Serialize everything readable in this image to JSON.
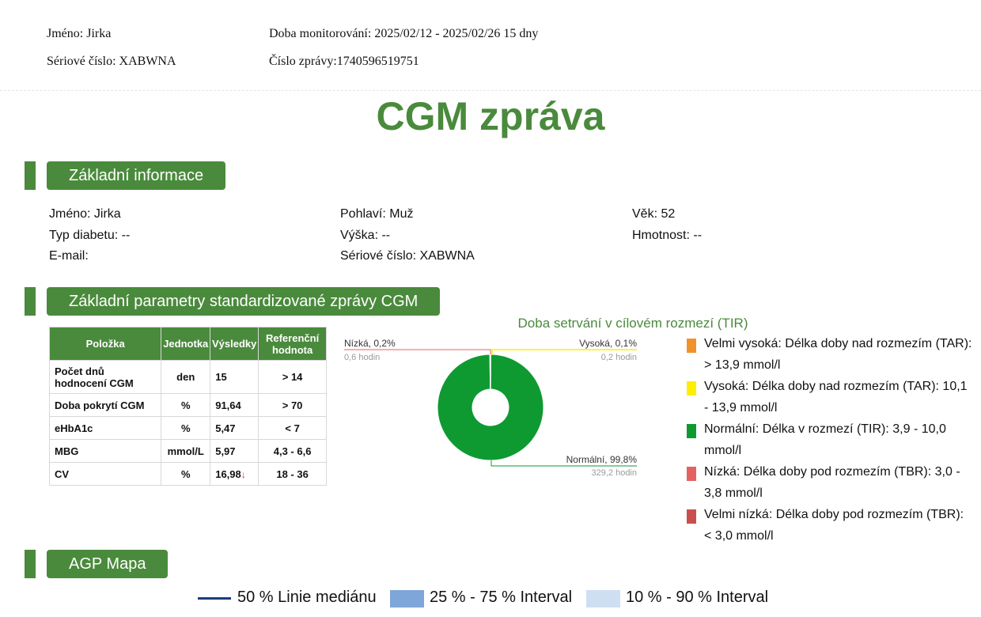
{
  "header": {
    "name": "Jméno: Jirka",
    "monitoring": "Doba monitorování: 2025/02/12 - 2025/02/26 15 dny",
    "serial": "Sériové číslo: XABWNA",
    "report_no": "Číslo zprávy:1740596519751"
  },
  "title": "CGM zpráva",
  "sections": {
    "basic_info": "Základní informace",
    "params": "Základní parametry standardizované zprávy CGM",
    "agp": "AGP Mapa"
  },
  "basic_info": {
    "name": "Jméno: Jirka",
    "gender": "Pohlaví: Muž",
    "age": "Věk: 52",
    "diabetes_type": "Typ diabetu: --",
    "height": "Výška: --",
    "weight": "Hmotnost: --",
    "email": "E-mail:",
    "serial": "Sériové číslo: XABWNA"
  },
  "params_table": {
    "headers": [
      "Položka",
      "Jednotka",
      "Výsledky",
      "Referenční hodnota"
    ],
    "rows": [
      {
        "item": "Počet dnů hodnocení CGM",
        "unit": "den",
        "result": "15",
        "ref": "> 14",
        "arrow": ""
      },
      {
        "item": "Doba pokrytí CGM",
        "unit": "%",
        "result": "91,64",
        "ref": "> 70",
        "arrow": ""
      },
      {
        "item": "eHbA1c",
        "unit": "%",
        "result": "5,47",
        "ref": "< 7",
        "arrow": ""
      },
      {
        "item": "MBG",
        "unit": "mmol/L",
        "result": "5,97",
        "ref": "4,3 - 6,6",
        "arrow": ""
      },
      {
        "item": "CV",
        "unit": "%",
        "result": "16,98",
        "ref": "18 - 36",
        "arrow": "↓"
      }
    ]
  },
  "tir_chart": {
    "title": "Doba setrvání v cílovém rozmezí (TIR)",
    "labels": {
      "low": "Nízká, 0,2%",
      "low_hours": "0,6 hodin",
      "high": "Vysoká, 0,1%",
      "high_hours": "0,2 hodin",
      "normal": "Normální, 99,8%",
      "normal_hours": "329,2 hodin"
    }
  },
  "chart_data": {
    "type": "pie",
    "title": "Doba setrvání v cílovém rozmezí (TIR)",
    "categories": [
      "Velmi vysoká",
      "Vysoká",
      "Normální",
      "Nízká",
      "Velmi nízká"
    ],
    "values": [
      0.0,
      0.1,
      99.8,
      0.2,
      0.0
    ],
    "hours": [
      0.0,
      0.2,
      329.2,
      0.6,
      0.0
    ],
    "colors": [
      "#f0922b",
      "#ffee00",
      "#0e9a31",
      "#e46262",
      "#c94f4f"
    ]
  },
  "tir_legend": [
    {
      "text": "Velmi vysoká: Délka doby nad rozmezím (TAR): > 13,9 mmol/l",
      "color": "#f0922b"
    },
    {
      "text": "Vysoká: Délka doby nad rozmezím (TAR): 10,1 - 13,9 mmol/l",
      "color": "#ffee00"
    },
    {
      "text": "Normální: Délka v rozmezí (TIR): 3,9 - 10,0 mmol/l",
      "color": "#0e9a31"
    },
    {
      "text": "Nízká: Délka doby pod rozmezím (TBR): 3,0 - 3,8 mmol/l",
      "color": "#e46262"
    },
    {
      "text": "Velmi nízká: Délka doby pod rozmezím (TBR): < 3,0 mmol/l",
      "color": "#c94f4f"
    }
  ],
  "agp_legend": {
    "median": "50 % Linie mediánu",
    "iqr": "25 % - 75 % Interval",
    "range": "10 % - 90 % Interval"
  },
  "colors": {
    "accent": "#4a8a3c",
    "median_line": "#1a3d7c",
    "iqr_band": "#7fa6d8",
    "range_band": "#cfdff2"
  }
}
